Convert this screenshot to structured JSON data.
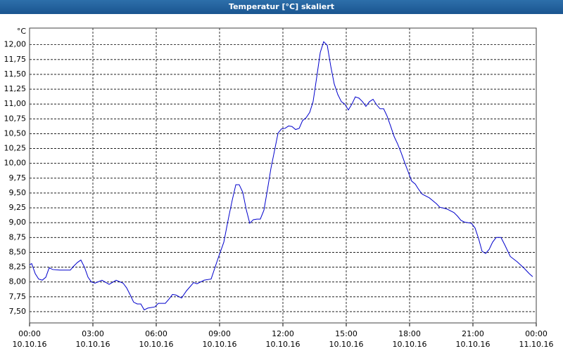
{
  "chart_data": {
    "type": "line",
    "title": "Temperatur [°C] skaliert",
    "y_unit": "°C",
    "x": [
      0,
      0.1,
      0.27,
      0.43,
      0.6,
      0.77,
      0.93,
      1.1,
      1.43,
      1.93,
      2.1,
      2.27,
      2.43,
      2.6,
      2.77,
      2.93,
      3.1,
      3.43,
      3.77,
      4.1,
      4.43,
      4.6,
      4.77,
      4.93,
      5.1,
      5.27,
      5.43,
      5.6,
      5.93,
      6.1,
      6.43,
      6.6,
      6.77,
      6.93,
      7.2,
      7.43,
      7.77,
      7.93,
      8.27,
      8.6,
      8.77,
      8.93,
      9.2,
      9.43,
      9.6,
      9.77,
      9.93,
      10.1,
      10.27,
      10.43,
      10.6,
      10.77,
      10.93,
      11.1,
      11.27,
      11.43,
      11.6,
      11.77,
      11.93,
      12.1,
      12.27,
      12.43,
      12.6,
      12.77,
      12.93,
      13.1,
      13.27,
      13.43,
      13.6,
      13.77,
      13.93,
      14.1,
      14.27,
      14.43,
      14.6,
      14.77,
      14.93,
      15.1,
      15.27,
      15.43,
      15.6,
      15.77,
      15.93,
      16.1,
      16.27,
      16.43,
      16.6,
      16.77,
      16.93,
      17.1,
      17.27,
      17.43,
      17.6,
      17.77,
      17.93,
      18.1,
      18.27,
      18.43,
      18.6,
      18.93,
      19.27,
      19.43,
      19.77,
      20.1,
      20.27,
      20.43,
      20.6,
      20.93,
      21.1,
      21.27,
      21.43,
      21.6,
      21.77,
      21.93,
      22.1,
      22.33,
      22.53,
      22.77,
      23.1,
      23.43,
      23.67,
      23.83
    ],
    "series": [
      {
        "color": "#0000cc",
        "values": [
          8.29,
          8.31,
          8.14,
          8.05,
          8.03,
          8.08,
          8.24,
          8.21,
          8.2,
          8.2,
          8.27,
          8.33,
          8.37,
          8.25,
          8.08,
          8.0,
          7.98,
          8.03,
          7.96,
          8.03,
          7.98,
          7.9,
          7.78,
          7.66,
          7.63,
          7.63,
          7.53,
          7.56,
          7.58,
          7.64,
          7.64,
          7.71,
          7.79,
          7.78,
          7.73,
          7.85,
          7.99,
          7.97,
          8.03,
          8.05,
          8.23,
          8.4,
          8.67,
          9.09,
          9.38,
          9.64,
          9.64,
          9.51,
          9.21,
          8.99,
          9.05,
          9.06,
          9.06,
          9.21,
          9.56,
          9.91,
          10.21,
          10.51,
          10.58,
          10.59,
          10.63,
          10.62,
          10.57,
          10.59,
          10.72,
          10.77,
          10.86,
          11.04,
          11.45,
          11.87,
          12.05,
          11.99,
          11.63,
          11.34,
          11.16,
          11.04,
          11.0,
          10.9,
          11.0,
          11.12,
          11.1,
          11.04,
          10.96,
          11.04,
          11.08,
          10.99,
          10.92,
          10.92,
          10.8,
          10.63,
          10.45,
          10.33,
          10.18,
          10.01,
          9.86,
          9.7,
          9.65,
          9.56,
          9.48,
          9.42,
          9.32,
          9.26,
          9.23,
          9.17,
          9.11,
          9.04,
          9.01,
          8.99,
          8.91,
          8.73,
          8.52,
          8.48,
          8.55,
          8.67,
          8.75,
          8.75,
          8.61,
          8.43,
          8.34,
          8.23,
          8.14,
          8.09
        ]
      }
    ],
    "xlim": [
      0,
      24
    ],
    "xticks": [
      {
        "value": 0,
        "label": [
          "00:00",
          "10.10.16"
        ]
      },
      {
        "value": 3,
        "label": [
          "03:00",
          "10.10.16"
        ]
      },
      {
        "value": 6,
        "label": [
          "06:00",
          "10.10.16"
        ]
      },
      {
        "value": 9,
        "label": [
          "09:00",
          "10.10.16"
        ]
      },
      {
        "value": 12,
        "label": [
          "12:00",
          "10.10.16"
        ]
      },
      {
        "value": 15,
        "label": [
          "15:00",
          "10.10.16"
        ]
      },
      {
        "value": 18,
        "label": [
          "18:00",
          "10.10.16"
        ]
      },
      {
        "value": 21,
        "label": [
          "21:00",
          "10.10.16"
        ]
      },
      {
        "value": 24,
        "label": [
          "00:00",
          "11.10.16"
        ]
      }
    ],
    "ylim": [
      7.31,
      12.28
    ],
    "yticks": [
      {
        "value": 7.5,
        "label": "7,50"
      },
      {
        "value": 7.75,
        "label": "7,75"
      },
      {
        "value": 8,
        "label": "8,00"
      },
      {
        "value": 8.25,
        "label": "8,25"
      },
      {
        "value": 8.5,
        "label": "8,50"
      },
      {
        "value": 8.75,
        "label": "8,75"
      },
      {
        "value": 9,
        "label": "9,00"
      },
      {
        "value": 9.25,
        "label": "9,25"
      },
      {
        "value": 9.5,
        "label": "9,50"
      },
      {
        "value": 9.75,
        "label": "9,75"
      },
      {
        "value": 10,
        "label": "10,00"
      },
      {
        "value": 10.25,
        "label": "10,25"
      },
      {
        "value": 10.5,
        "label": "10,50"
      },
      {
        "value": 10.75,
        "label": "10,75"
      },
      {
        "value": 11,
        "label": "11,00"
      },
      {
        "value": 11.25,
        "label": "11,25"
      },
      {
        "value": 11.5,
        "label": "11,50"
      },
      {
        "value": 11.75,
        "label": "11,75"
      },
      {
        "value": 12,
        "label": "12,00"
      }
    ],
    "grid": true
  }
}
